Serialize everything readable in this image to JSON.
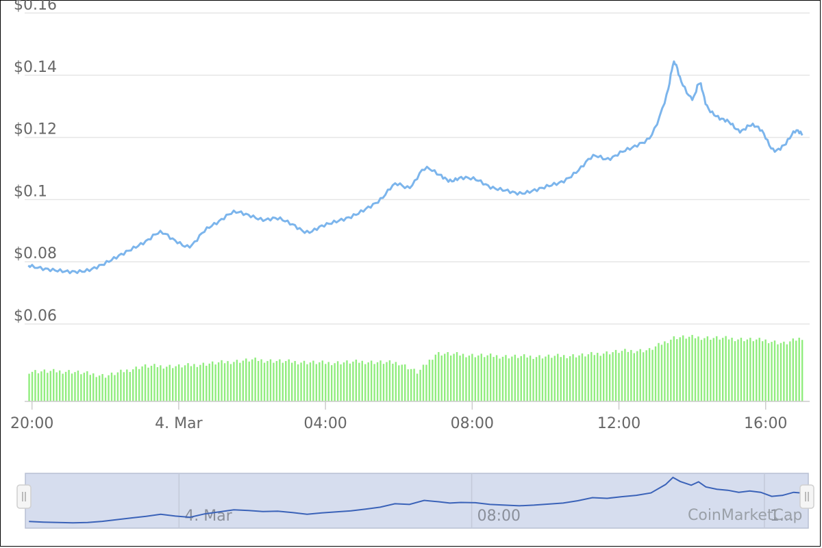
{
  "chart_data": {
    "type": "line",
    "price_axis": {
      "ticks": [
        {
          "label": "$0.16",
          "value": 0.16
        },
        {
          "label": "$0.14",
          "value": 0.14
        },
        {
          "label": "$0.12",
          "value": 0.12
        },
        {
          "label": "$0.1",
          "value": 0.1
        },
        {
          "label": "$0.08",
          "value": 0.08
        },
        {
          "label": "$0.06",
          "value": 0.06
        }
      ]
    },
    "time_axis": {
      "unit": "hours since 00:00 on 4. Mar",
      "range": [
        -4.2,
        17.2
      ],
      "ticks": [
        {
          "label": "20:00",
          "value": -4
        },
        {
          "label": "4. Mar",
          "value": 0
        },
        {
          "label": "04:00",
          "value": 4
        },
        {
          "label": "08:00",
          "value": 8
        },
        {
          "label": "12:00",
          "value": 12
        },
        {
          "label": "16:00",
          "value": 16
        }
      ]
    },
    "series": [
      {
        "color": "#7cb5ec",
        "x": [
          -4.1,
          -3.7,
          -3.3,
          -2.9,
          -2.5,
          -2.1,
          -1.7,
          -1.3,
          -0.9,
          -0.5,
          -0.1,
          0.3,
          0.7,
          1.1,
          1.5,
          1.9,
          2.3,
          2.7,
          3.1,
          3.5,
          3.9,
          4.3,
          4.7,
          5.1,
          5.5,
          5.9,
          6.3,
          6.7,
          7.1,
          7.4,
          7.7,
          8.1,
          8.5,
          8.9,
          9.3,
          9.7,
          10.1,
          10.5,
          10.9,
          11.3,
          11.7,
          12.1,
          12.5,
          12.9,
          13.3,
          13.5,
          13.7,
          14.0,
          14.2,
          14.4,
          14.7,
          15.0,
          15.3,
          15.6,
          15.9,
          16.2,
          16.5,
          16.8,
          17.0
        ],
        "y": [
          0.0788,
          0.0778,
          0.0772,
          0.0768,
          0.0772,
          0.079,
          0.0815,
          0.084,
          0.0865,
          0.0895,
          0.0868,
          0.085,
          0.09,
          0.093,
          0.096,
          0.095,
          0.0935,
          0.094,
          0.092,
          0.0895,
          0.0915,
          0.093,
          0.0945,
          0.097,
          0.1,
          0.105,
          0.104,
          0.11,
          0.108,
          0.106,
          0.107,
          0.1065,
          0.104,
          0.103,
          0.102,
          0.103,
          0.1045,
          0.106,
          0.1095,
          0.114,
          0.113,
          0.1155,
          0.1175,
          0.121,
          0.1335,
          0.144,
          0.138,
          0.1325,
          0.1375,
          0.13,
          0.1265,
          0.125,
          0.122,
          0.124,
          0.122,
          0.116,
          0.1175,
          0.122,
          0.121
        ]
      }
    ],
    "volume": {
      "color": "#90ed7d",
      "x": [
        -4.1,
        -3.0,
        -2.0,
        -1.0,
        0.0,
        1.0,
        2.0,
        3.0,
        4.0,
        5.0,
        6.0,
        6.5,
        7.0,
        8.0,
        9.0,
        10.0,
        11.0,
        12.0,
        12.8,
        13.5,
        14.0,
        15.0,
        16.0,
        16.5,
        17.0
      ],
      "relative_height": [
        0.47,
        0.47,
        0.4,
        0.55,
        0.55,
        0.6,
        0.65,
        0.62,
        0.6,
        0.62,
        0.6,
        0.45,
        0.75,
        0.72,
        0.7,
        0.7,
        0.72,
        0.78,
        0.8,
        1.0,
        1.0,
        0.98,
        0.95,
        0.9,
        1.0
      ]
    },
    "navigator": {
      "labels": [
        {
          "label": "4. Mar",
          "value": 0
        },
        {
          "label": "08:00",
          "value": 8
        },
        {
          "label": "1...",
          "value": 16
        }
      ]
    },
    "watermark": "CoinMarketCap",
    "grid": true
  }
}
